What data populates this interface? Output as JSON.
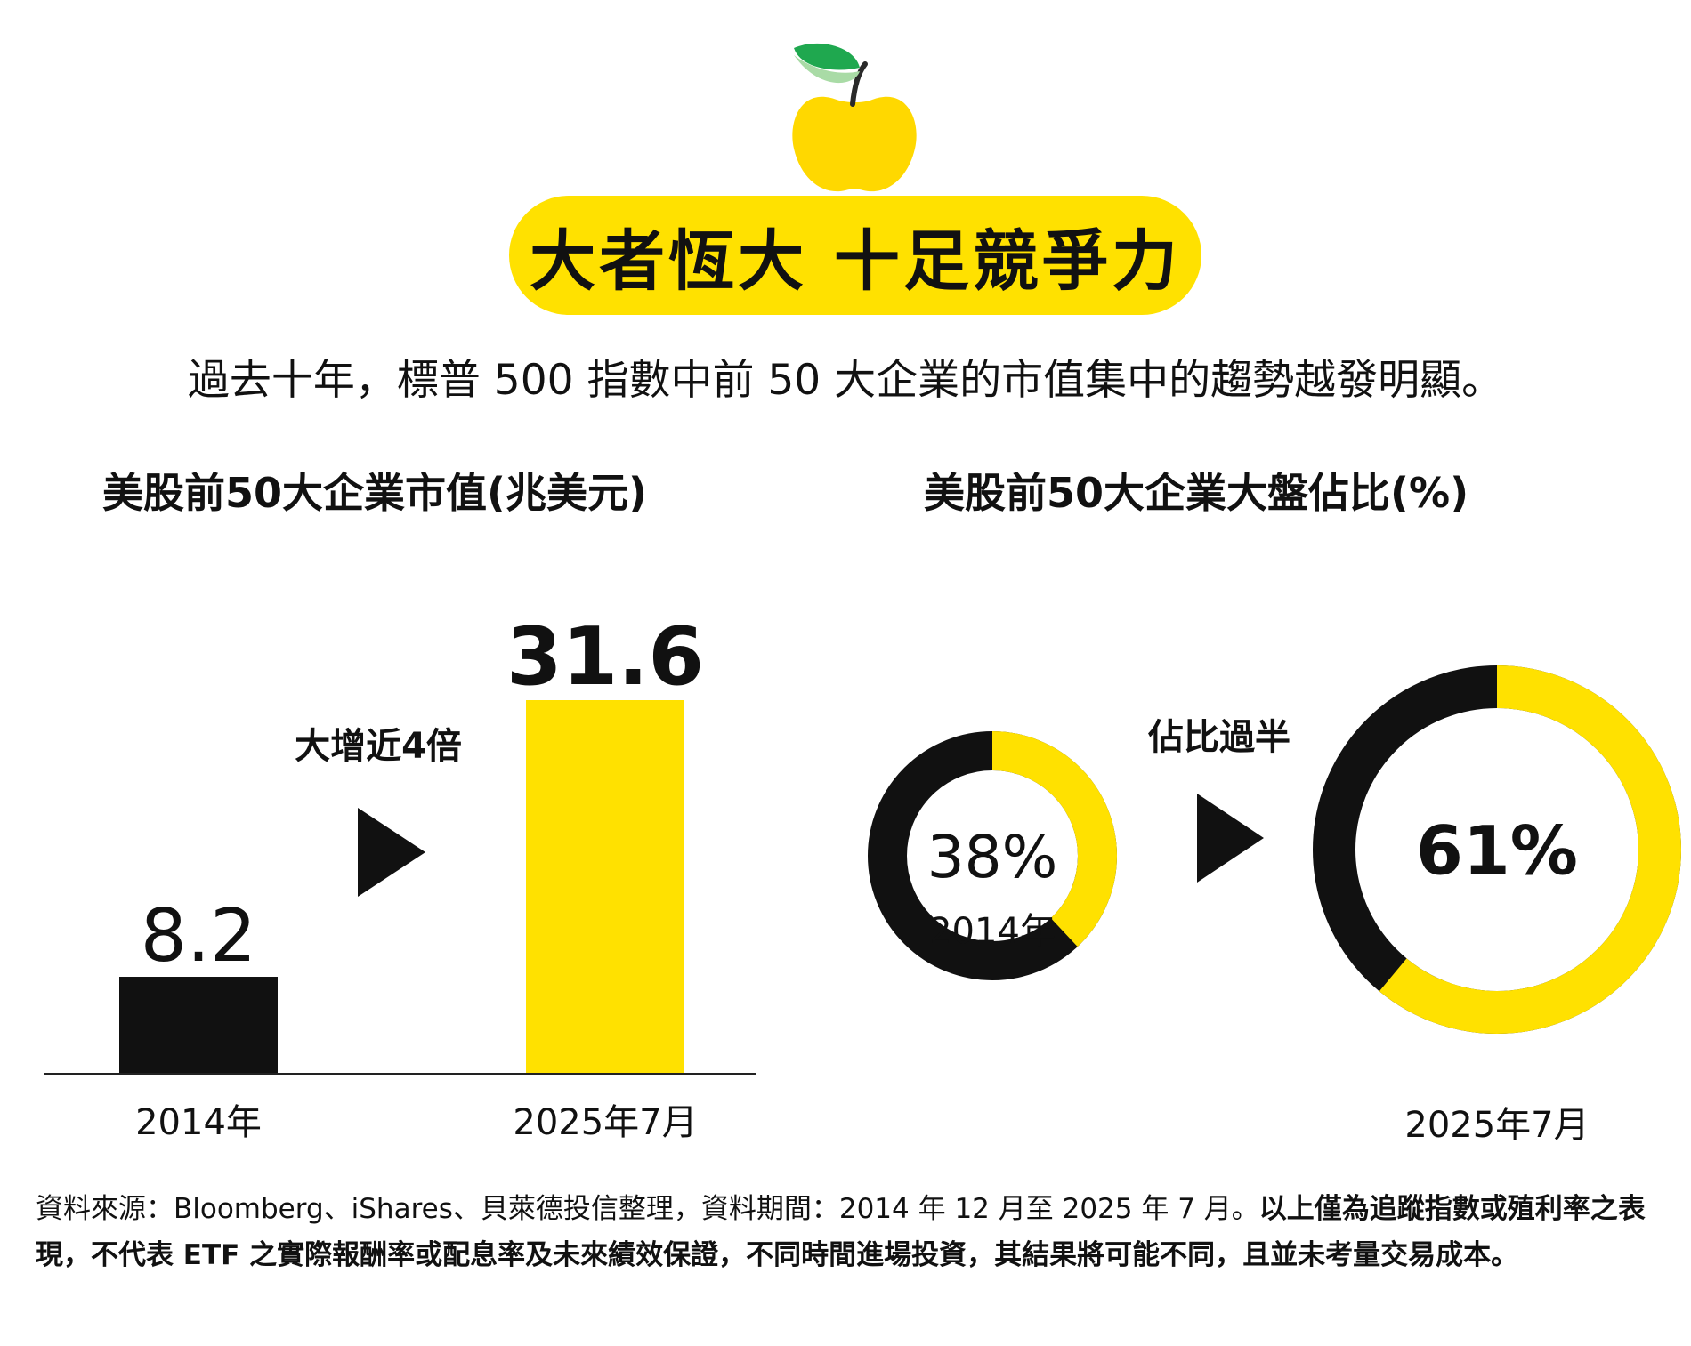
{
  "header": {
    "title": "大者恆大  十足競爭力",
    "subtitle": "過去十年，標普 500 指數中前 50 大企業的市值集中的趨勢越發明顯。",
    "icon": "apple-icon"
  },
  "colors": {
    "accent": "#ffe100",
    "dark": "#111111",
    "leaf": "#1fa84f",
    "leaf_light": "#a9dba6"
  },
  "chart_data": [
    {
      "type": "bar",
      "title": "美股前50大企業市值(兆美元)",
      "categories": [
        "2014年",
        "2025年7月"
      ],
      "values": [
        8.2,
        31.6
      ],
      "value_labels": [
        "8.2",
        "31.6"
      ],
      "bar_colors": [
        "#111111",
        "#ffe100"
      ],
      "annotation": "大增近4倍",
      "xlabel": "",
      "ylabel": "",
      "ylim": [
        0,
        31.6
      ],
      "grid": false
    },
    {
      "type": "pie",
      "subtype": "donut",
      "title": "美股前50大企業大盤佔比(%)",
      "categories": [
        "2014年",
        "2025年7月"
      ],
      "values": [
        38,
        61
      ],
      "value_labels": [
        "38%",
        "61%"
      ],
      "annotation": "佔比過半",
      "slice_colors": {
        "share": "#ffe100",
        "rest": "#111111"
      }
    }
  ],
  "footnote": {
    "normal": "資料來源：Bloomberg、iShares、貝萊德投信整理，資料期間：2014 年 12 月至 2025 年 7 月。",
    "bold": "以上僅為追蹤指數或殖利率之表現，不代表 ETF 之實際報酬率或配息率及未來績效保證，不同時間進場投資，其結果將可能不同，且並未考量交易成本。"
  }
}
